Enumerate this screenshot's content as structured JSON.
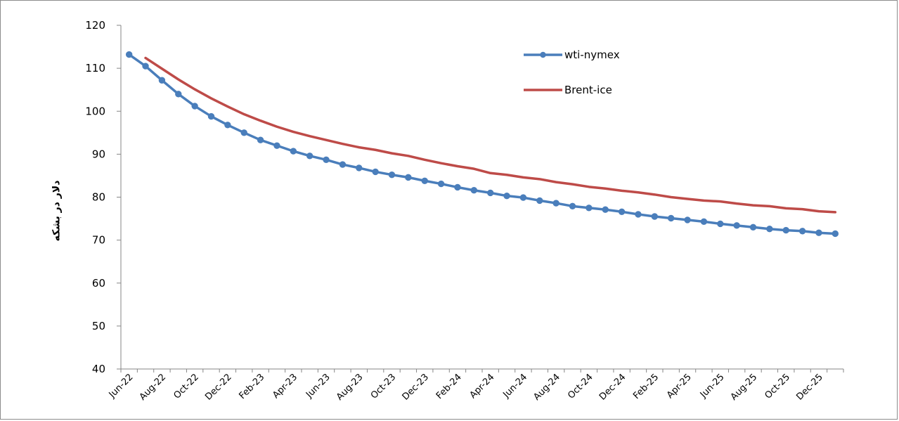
{
  "chart_data": {
    "type": "line",
    "title": "",
    "xlabel": "",
    "ylabel": "دلار در بشکه",
    "ylim": [
      40,
      120
    ],
    "yticks": [
      40,
      50,
      60,
      70,
      80,
      90,
      100,
      110,
      120
    ],
    "grid": false,
    "legend_position": "top-right (inside plot)",
    "x": [
      "Jun-22",
      "Jul-22",
      "Aug-22",
      "Sep-22",
      "Oct-22",
      "Nov-22",
      "Dec-22",
      "Jan-23",
      "Feb-23",
      "Mar-23",
      "Apr-23",
      "May-23",
      "Jun-23",
      "Jul-23",
      "Aug-23",
      "Sep-23",
      "Oct-23",
      "Nov-23",
      "Dec-23",
      "Jan-24",
      "Feb-24",
      "Mar-24",
      "Apr-24",
      "May-24",
      "Jun-24",
      "Jul-24",
      "Aug-24",
      "Sep-24",
      "Oct-24",
      "Nov-24",
      "Dec-24",
      "Jan-25",
      "Feb-25",
      "Mar-25",
      "Apr-25",
      "May-25",
      "Jun-25",
      "Jul-25",
      "Aug-25",
      "Sep-25",
      "Oct-25",
      "Nov-25",
      "Dec-25",
      "Jan-26"
    ],
    "x_tick_labels": [
      "Jun-22",
      "Aug-22",
      "Oct-22",
      "Dec-22",
      "Feb-23",
      "Apr-23",
      "Jun-23",
      "Aug-23",
      "Oct-23",
      "Dec-23",
      "Feb-24",
      "Apr-24",
      "Jun-24",
      "Aug-24",
      "Oct-24",
      "Dec-24",
      "Feb-25",
      "Apr-25",
      "Jun-25",
      "Aug-25",
      "Oct-25",
      "Dec-25"
    ],
    "series": [
      {
        "name": "wti-nymex",
        "color": "#4a7ebb",
        "marker": "circle",
        "values": [
          113.2,
          110.5,
          107.2,
          104.0,
          101.2,
          98.8,
          96.8,
          95.0,
          93.3,
          92.0,
          90.7,
          89.6,
          88.7,
          87.6,
          86.8,
          85.9,
          85.2,
          84.6,
          83.8,
          83.1,
          82.3,
          81.6,
          81.0,
          80.3,
          79.9,
          79.2,
          78.6,
          77.9,
          77.5,
          77.1,
          76.6,
          76.0,
          75.5,
          75.1,
          74.7,
          74.3,
          73.8,
          73.4,
          73.0,
          72.6,
          72.3,
          72.1,
          71.7,
          71.5
        ]
      },
      {
        "name": "Brent-ice",
        "color": "#be4b48",
        "marker": "none",
        "values": [
          null,
          112.4,
          109.9,
          107.4,
          105.1,
          103.0,
          101.1,
          99.3,
          97.8,
          96.4,
          95.2,
          94.2,
          93.3,
          92.4,
          91.6,
          91.0,
          90.2,
          89.6,
          88.7,
          87.9,
          87.2,
          86.6,
          85.6,
          85.2,
          84.6,
          84.2,
          83.5,
          83.0,
          82.4,
          82.0,
          81.5,
          81.1,
          80.6,
          80.0,
          79.6,
          79.2,
          79.0,
          78.5,
          78.1,
          77.9,
          77.4,
          77.2,
          76.7,
          76.5
        ]
      }
    ]
  }
}
